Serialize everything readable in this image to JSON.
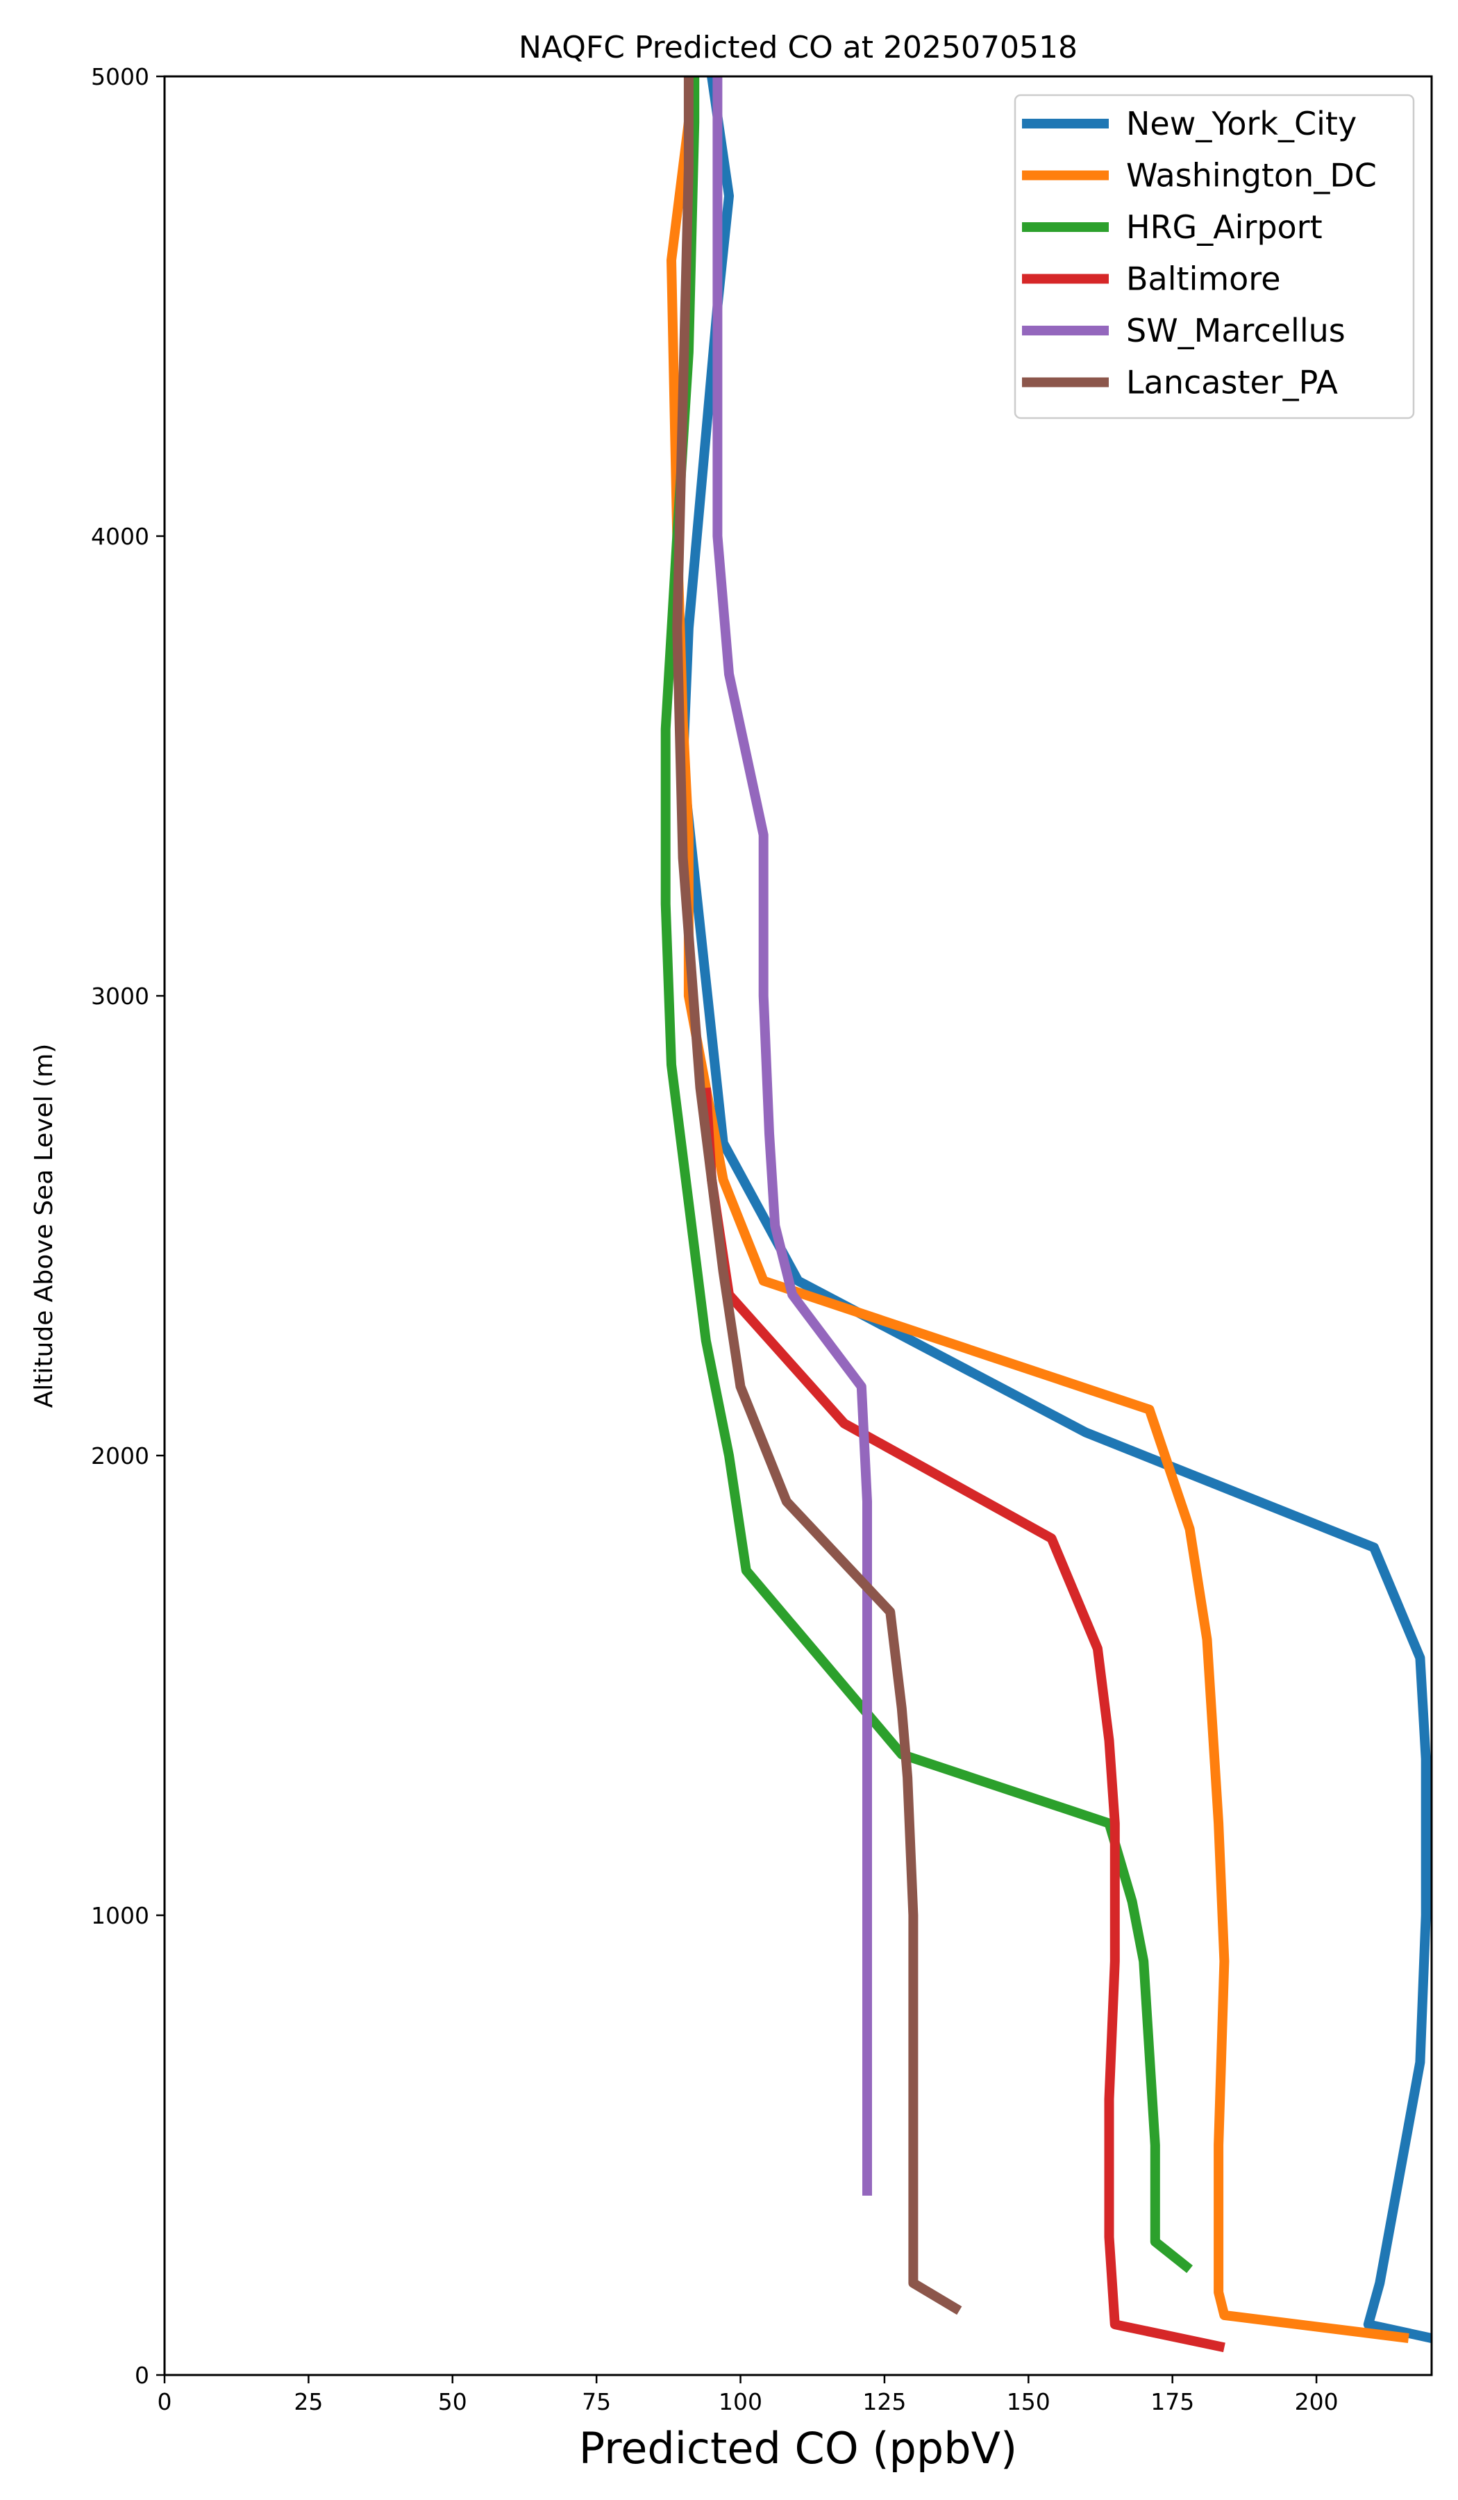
{
  "chart_data": {
    "type": "line",
    "title": "NAQFC Predicted CO at 2025070518",
    "xlabel": "Predicted CO (ppbV)",
    "ylabel": "Altitude Above Sea Level (m)",
    "xlim": [
      0,
      220
    ],
    "ylim": [
      0,
      5000
    ],
    "xticks": [
      0,
      25,
      50,
      75,
      100,
      125,
      150,
      175,
      200
    ],
    "yticks": [
      0,
      1000,
      2000,
      3000,
      4000,
      5000
    ],
    "grid": false,
    "legend_position": "top-right",
    "series": [
      {
        "name": "New_York_City",
        "color": "#1f77b4",
        "points": [
          [
            220,
            80
          ],
          [
            209,
            110
          ],
          [
            211,
            200
          ],
          [
            218,
            680
          ],
          [
            219,
            1000
          ],
          [
            219,
            1340
          ],
          [
            218,
            1560
          ],
          [
            210,
            1800
          ],
          [
            160,
            2050
          ],
          [
            110,
            2380
          ],
          [
            97,
            2680
          ],
          [
            90,
            3500
          ],
          [
            91,
            3800
          ],
          [
            96,
            4500
          ],
          [
            98,
            4740
          ],
          [
            95,
            5000
          ]
        ]
      },
      {
        "name": "Washington_DC",
        "color": "#ff7f0e",
        "points": [
          [
            216,
            80
          ],
          [
            184,
            130
          ],
          [
            183,
            180
          ],
          [
            183,
            500
          ],
          [
            184,
            900
          ],
          [
            183,
            1200
          ],
          [
            181,
            1600
          ],
          [
            178,
            1840
          ],
          [
            171,
            2100
          ],
          [
            104,
            2380
          ],
          [
            97,
            2600
          ],
          [
            91,
            3000
          ],
          [
            91,
            3350
          ],
          [
            90,
            3600
          ],
          [
            89,
            4000
          ],
          [
            88,
            4600
          ],
          [
            92,
            5000
          ]
        ]
      },
      {
        "name": "HRG_Airport",
        "color": "#2ca02c",
        "points": [
          [
            178,
            230
          ],
          [
            172,
            290
          ],
          [
            172,
            500
          ],
          [
            171,
            700
          ],
          [
            170,
            900
          ],
          [
            168,
            1030
          ],
          [
            164,
            1200
          ],
          [
            128,
            1350
          ],
          [
            101,
            1750
          ],
          [
            98,
            2000
          ],
          [
            94,
            2250
          ],
          [
            91,
            2550
          ],
          [
            88,
            2850
          ],
          [
            87,
            3200
          ],
          [
            87,
            3580
          ],
          [
            89,
            4000
          ],
          [
            91,
            4400
          ],
          [
            92,
            4900
          ],
          [
            92,
            5000
          ]
        ]
      },
      {
        "name": "Baltimore",
        "color": "#d62728",
        "points": [
          [
            184,
            60
          ],
          [
            165,
            110
          ],
          [
            164,
            300
          ],
          [
            164,
            600
          ],
          [
            165,
            900
          ],
          [
            165,
            1200
          ],
          [
            164,
            1380
          ],
          [
            162,
            1580
          ],
          [
            154,
            1820
          ],
          [
            118,
            2070
          ],
          [
            98,
            2350
          ],
          [
            95,
            2600
          ],
          [
            94,
            2800
          ]
        ]
      },
      {
        "name": "SW_Marcellus",
        "color": "#9467bd",
        "points": [
          [
            122,
            390
          ],
          [
            122,
            800
          ],
          [
            122,
            1200
          ],
          [
            122,
            1600
          ],
          [
            122,
            1900
          ],
          [
            121,
            2150
          ],
          [
            109,
            2350
          ],
          [
            106,
            2500
          ],
          [
            105,
            2700
          ],
          [
            104,
            3000
          ],
          [
            104,
            3350
          ],
          [
            98,
            3700
          ],
          [
            96,
            4000
          ],
          [
            96,
            4500
          ],
          [
            96,
            5000
          ]
        ]
      },
      {
        "name": "Lancaster_PA",
        "color": "#8c564b",
        "points": [
          [
            138,
            140
          ],
          [
            130,
            200
          ],
          [
            130,
            600
          ],
          [
            130,
            1000
          ],
          [
            129,
            1300
          ],
          [
            128,
            1450
          ],
          [
            126,
            1660
          ],
          [
            108,
            1900
          ],
          [
            100,
            2150
          ],
          [
            97,
            2400
          ],
          [
            93,
            2800
          ],
          [
            90,
            3300
          ],
          [
            89,
            3800
          ],
          [
            90,
            4300
          ],
          [
            91,
            4800
          ],
          [
            91,
            5000
          ]
        ]
      }
    ]
  }
}
